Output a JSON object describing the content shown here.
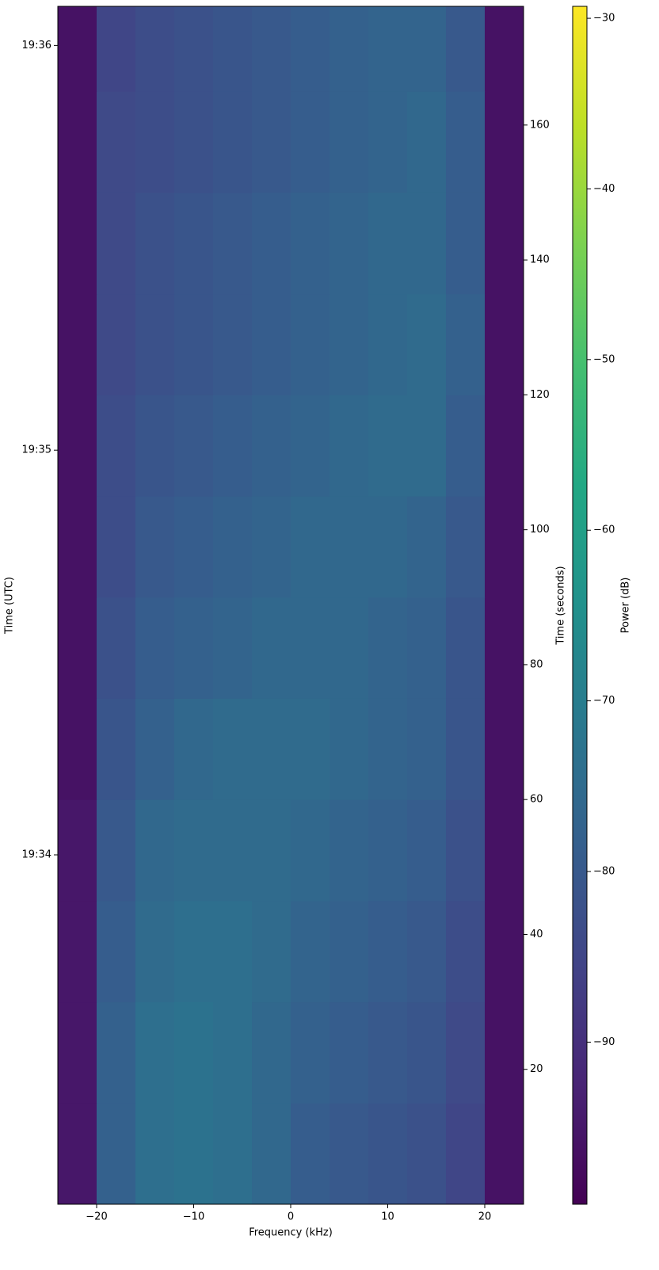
{
  "chart_data": {
    "type": "spectrogram",
    "xlabel": "Frequency (kHz)",
    "ylabel": "Time (UTC)",
    "y2label": "Time (seconds)",
    "colorbar_label": "Power (dB)",
    "colormap": "viridis",
    "xlim": [
      -24,
      24
    ],
    "xticks": [
      {
        "value": -20,
        "label": "−20"
      },
      {
        "value": -10,
        "label": "−10"
      },
      0,
      10,
      20
    ],
    "ylim": [
      0,
      177.6
    ],
    "yticks": [
      {
        "value": 51.8,
        "label": "19:34"
      },
      {
        "value": 111.8,
        "label": "19:35"
      },
      {
        "value": 171.8,
        "label": "19:36"
      }
    ],
    "y2lim": [
      0,
      177.6
    ],
    "y2ticks": [
      20,
      40,
      60,
      80,
      100,
      120,
      140,
      160
    ],
    "clim": [
      -99.5,
      -29.3
    ],
    "cticks": [
      {
        "value": -90,
        "label": "−90"
      },
      {
        "value": -80,
        "label": "−80"
      },
      {
        "value": -70,
        "label": "−70"
      },
      {
        "value": -60,
        "label": "−60"
      },
      {
        "value": -50,
        "label": "−50"
      },
      {
        "value": -40,
        "label": "−40"
      },
      {
        "value": -30,
        "label": "−30"
      }
    ],
    "xbins": [
      -24,
      -20,
      -16,
      -12,
      -8,
      -4,
      0,
      4,
      8,
      12,
      16,
      20,
      24
    ],
    "ybins": [
      0,
      15,
      30,
      45,
      60,
      75,
      90,
      105,
      120,
      135,
      150,
      165,
      177.6
    ],
    "z": [
      [
        -95,
        -78,
        -74,
        -73,
        -74,
        -76,
        -79,
        -80,
        -81,
        -82,
        -85,
        -96
      ],
      [
        -95,
        -78,
        -74,
        -73,
        -74,
        -76,
        -78,
        -79,
        -80,
        -81,
        -84,
        -96
      ],
      [
        -95,
        -79,
        -75,
        -74,
        -74,
        -75,
        -77,
        -78,
        -79,
        -80,
        -83,
        -96
      ],
      [
        -95,
        -80,
        -76,
        -75,
        -75,
        -75,
        -76,
        -77,
        -78,
        -79,
        -82,
        -96
      ],
      [
        -96,
        -81,
        -78,
        -76,
        -75,
        -75,
        -75,
        -76,
        -77,
        -78,
        -81,
        -96
      ],
      [
        -96,
        -82,
        -79,
        -78,
        -77,
        -76,
        -76,
        -76,
        -77,
        -78,
        -81,
        -96
      ],
      [
        -96,
        -83,
        -80,
        -79,
        -78,
        -77,
        -76,
        -76,
        -76,
        -77,
        -80,
        -96
      ],
      [
        -96,
        -83,
        -81,
        -80,
        -79,
        -78,
        -77,
        -76,
        -75,
        -75,
        -79,
        -96
      ],
      [
        -96,
        -84,
        -82,
        -81,
        -80,
        -79,
        -78,
        -77,
        -76,
        -75,
        -78,
        -96
      ],
      [
        -96,
        -84,
        -82,
        -81,
        -80,
        -79,
        -78,
        -77,
        -76,
        -76,
        -79,
        -96
      ],
      [
        -96,
        -84,
        -83,
        -82,
        -81,
        -80,
        -79,
        -78,
        -77,
        -76,
        -79,
        -96
      ],
      [
        -96,
        -85,
        -83,
        -82,
        -81,
        -80,
        -79,
        -78,
        -77,
        -77,
        -80,
        -96
      ]
    ]
  }
}
